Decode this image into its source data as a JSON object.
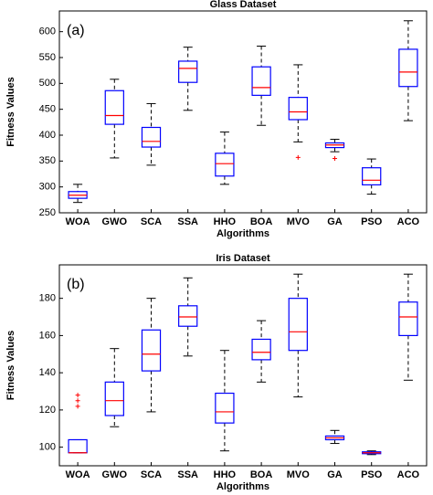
{
  "chart_data": [
    {
      "type": "box",
      "title": "Glass Dataset",
      "panel_label": "(a)",
      "xlabel": "Algorithms",
      "ylabel": "Fitness Values",
      "box_color": "#0000ff",
      "median_color": "#ff0000",
      "outlier_color": "#ff0000",
      "categories": [
        "WOA",
        "GWO",
        "SCA",
        "SSA",
        "HHO",
        "BOA",
        "MVO",
        "GA",
        "PSO",
        "ACO"
      ],
      "boxes": [
        {
          "min": 270,
          "q1": 278,
          "median": 284,
          "q3": 291,
          "max": 305,
          "outliers": []
        },
        {
          "min": 356,
          "q1": 421,
          "median": 438,
          "q3": 486,
          "max": 508,
          "outliers": []
        },
        {
          "min": 342,
          "q1": 377,
          "median": 388,
          "q3": 415,
          "max": 461,
          "outliers": []
        },
        {
          "min": 448,
          "q1": 502,
          "median": 529,
          "q3": 543,
          "max": 570,
          "outliers": []
        },
        {
          "min": 305,
          "q1": 321,
          "median": 345,
          "q3": 365,
          "max": 406,
          "outliers": []
        },
        {
          "min": 419,
          "q1": 477,
          "median": 492,
          "q3": 532,
          "max": 572,
          "outliers": []
        },
        {
          "min": 387,
          "q1": 430,
          "median": 445,
          "q3": 473,
          "max": 536,
          "outliers": [
            357
          ]
        },
        {
          "min": 368,
          "q1": 376,
          "median": 381,
          "q3": 385,
          "max": 392,
          "outliers": [
            355
          ]
        },
        {
          "min": 286,
          "q1": 304,
          "median": 313,
          "q3": 337,
          "max": 354,
          "outliers": []
        },
        {
          "min": 428,
          "q1": 494,
          "median": 522,
          "q3": 566,
          "max": 621,
          "outliers": []
        }
      ],
      "ylim": [
        250,
        640
      ],
      "yticks": [
        250,
        300,
        350,
        400,
        450,
        500,
        550,
        600
      ]
    },
    {
      "type": "box",
      "title": "Iris Dataset",
      "panel_label": "(b)",
      "xlabel": "Algorithms",
      "ylabel": "Fitness Values",
      "box_color": "#0000ff",
      "median_color": "#ff0000",
      "outlier_color": "#ff0000",
      "categories": [
        "WOA",
        "GWO",
        "SCA",
        "SSA",
        "HHO",
        "BOA",
        "MVO",
        "GA",
        "PSO",
        "ACO"
      ],
      "boxes": [
        {
          "min": 97,
          "q1": 97,
          "median": 97,
          "q3": 104,
          "max": 104,
          "outliers": [
            122,
            125,
            128
          ]
        },
        {
          "min": 111,
          "q1": 117,
          "median": 125,
          "q3": 135,
          "max": 153,
          "outliers": []
        },
        {
          "min": 119,
          "q1": 141,
          "median": 150,
          "q3": 163,
          "max": 180,
          "outliers": []
        },
        {
          "min": 149,
          "q1": 165,
          "median": 170,
          "q3": 176,
          "max": 191,
          "outliers": []
        },
        {
          "min": 98,
          "q1": 113,
          "median": 119,
          "q3": 129,
          "max": 152,
          "outliers": []
        },
        {
          "min": 135,
          "q1": 147,
          "median": 151,
          "q3": 158,
          "max": 168,
          "outliers": []
        },
        {
          "min": 127,
          "q1": 152,
          "median": 162,
          "q3": 180,
          "max": 193,
          "outliers": []
        },
        {
          "min": 102,
          "q1": 104,
          "median": 105,
          "q3": 106,
          "max": 109,
          "outliers": []
        },
        {
          "min": 96,
          "q1": 96.5,
          "median": 97,
          "q3": 97.5,
          "max": 98,
          "outliers": []
        },
        {
          "min": 136,
          "q1": 160,
          "median": 170,
          "q3": 178,
          "max": 193,
          "outliers": []
        }
      ],
      "ylim": [
        90,
        198
      ],
      "yticks": [
        100,
        120,
        140,
        160,
        180
      ]
    }
  ]
}
